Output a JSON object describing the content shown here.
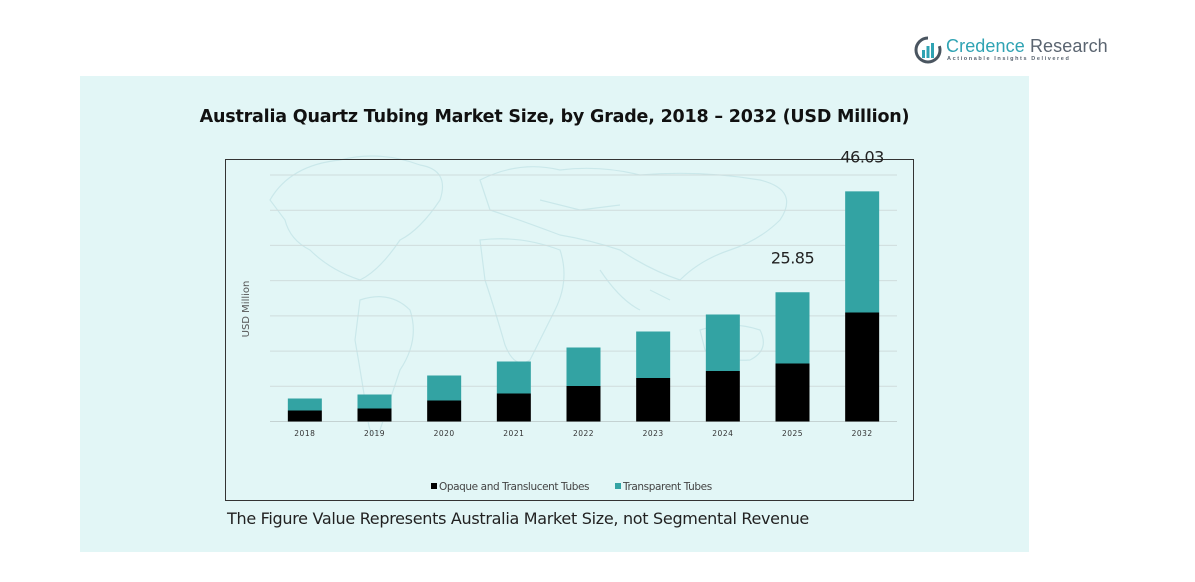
{
  "brand": {
    "name_part1": "Credence",
    "name_part2": " Research",
    "tagline": "Actionable Insights Delivered",
    "logo_icon": "bar-chart-circle-icon"
  },
  "caption": "The Figure Value Represents Australia Market Size, not Segmental Revenue",
  "colors": {
    "panel_bg": "#e2f6f6",
    "opaque": "#000000",
    "transparent": "#33a3a3",
    "gridline": "#cfdcdc"
  },
  "chart_data": {
    "type": "bar",
    "stacked": true,
    "title": "Australia Quartz Tubing Market Size, by Grade, 2018 – 2032 (USD Million)",
    "xlabel": "",
    "ylabel": "USD Million",
    "categories": [
      "2018",
      "2019",
      "2020",
      "2021",
      "2022",
      "2023",
      "2024",
      "2025",
      "2032"
    ],
    "series": [
      {
        "name": "Opaque and Translucent Tubes",
        "color": "#000000",
        "values": [
          2.2,
          2.6,
          4.2,
          5.6,
          7.1,
          8.7,
          10.1,
          11.6,
          21.8
        ]
      },
      {
        "name": "Transparent Tubes",
        "color": "#33a3a3",
        "values": [
          2.4,
          2.8,
          5.0,
          6.4,
          7.7,
          9.3,
          11.3,
          14.25,
          24.23
        ]
      }
    ],
    "data_labels": [
      {
        "category": "2025",
        "text": "25.85"
      },
      {
        "category": "2032",
        "text": "46.03"
      }
    ],
    "ylim": [
      0,
      49.3
    ],
    "gridlines": 7,
    "grid": true,
    "legend": {
      "position": "bottom",
      "entries": [
        "Opaque and Translucent Tubes",
        "Transparent Tubes"
      ]
    }
  }
}
